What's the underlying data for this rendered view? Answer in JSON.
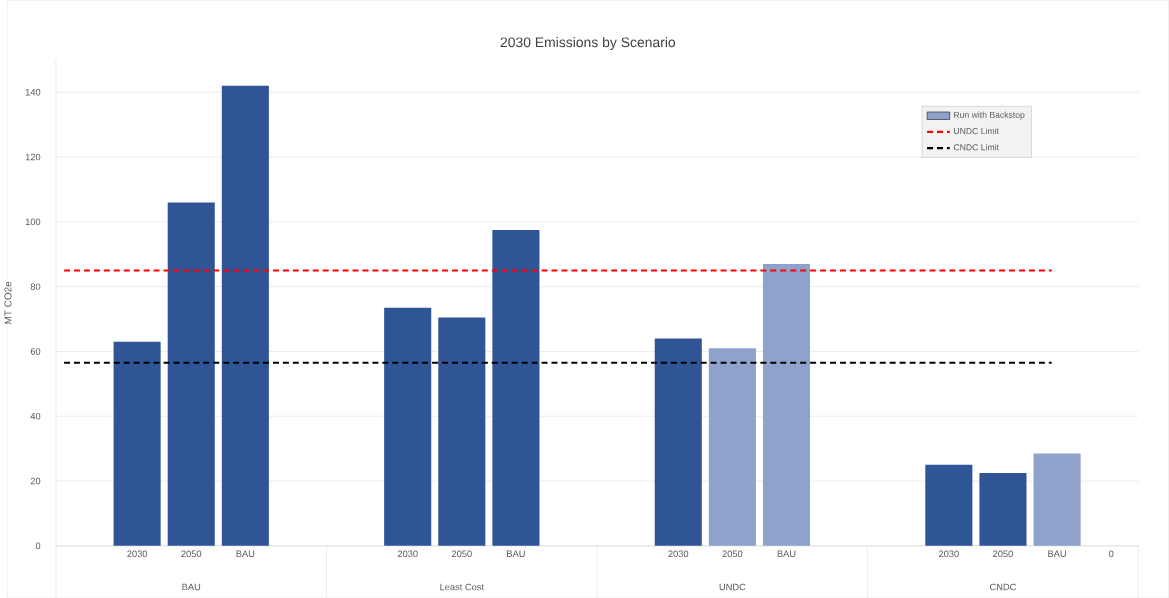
{
  "chart_data": {
    "type": "bar",
    "title": "2030 Emissions by Scenario",
    "ylabel": "MT CO2e",
    "categories": [
      null,
      "2030",
      "2050",
      "BAU",
      null,
      null,
      "2030",
      "2050",
      "BAU",
      null,
      null,
      "2030",
      "2050",
      "BAU",
      null,
      null,
      "2030",
      "2050",
      "BAU",
      "0"
    ],
    "annotations": [
      "BAU",
      "Least Cost",
      "UNDC",
      "CNDC"
    ],
    "series": [
      {
        "color": "#2f5597",
        "values": [
          null,
          63,
          106,
          142,
          null,
          null,
          73.5,
          70.5,
          97.5,
          null,
          null,
          64,
          null,
          null,
          null,
          null,
          25,
          22.5,
          null,
          null
        ]
      },
      {
        "name": "Run with Backstop",
        "color": "#8ea2cb",
        "values": [
          null,
          null,
          null,
          null,
          null,
          null,
          null,
          null,
          null,
          null,
          null,
          null,
          61,
          87,
          null,
          null,
          null,
          null,
          28.5,
          null
        ]
      }
    ],
    "ref_lines": [
      {
        "axis": "y",
        "value": 85,
        "label": "UNDC Limit",
        "color": "#ff0000",
        "line_style": "dashed"
      },
      {
        "axis": "y",
        "value": 56.5,
        "label": "CNDC Limit",
        "color": "#000000",
        "line_style": "dashed"
      }
    ],
    "ylim": [
      0,
      150
    ],
    "yticks": [
      0,
      20,
      40,
      60,
      80,
      100,
      120,
      140
    ],
    "grid": "y",
    "legend": "top right"
  }
}
